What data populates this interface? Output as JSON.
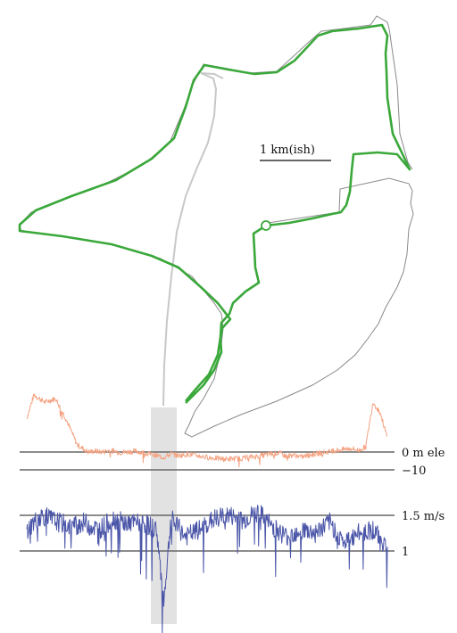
{
  "chart_data": [
    {
      "type": "line",
      "panel": "track map",
      "title": "",
      "scale_label": "1 km(ish)",
      "series": [
        {
          "description": "recorded track (green)",
          "color": "#3aa83a",
          "start_marker": "open circle"
        },
        {
          "description": "reference path (gray)",
          "color": "#8a8a8a"
        },
        {
          "description": "highlighted section path (light gray)",
          "color": "#c8c8c8"
        }
      ]
    },
    {
      "type": "line",
      "panel": "elevation",
      "unit": "m",
      "color": "#f4a382",
      "reference_lines": [
        {
          "value": 0,
          "label": "0 m ele"
        },
        {
          "value": -10,
          "label": "−10"
        }
      ],
      "x": [
        0,
        0.02,
        0.05,
        0.08,
        0.11,
        0.14,
        0.17,
        0.19,
        0.21,
        0.23,
        0.26,
        0.3,
        0.34,
        0.36,
        0.38,
        0.4,
        0.42,
        0.45,
        0.5,
        0.55,
        0.6,
        0.65,
        0.68,
        0.7,
        0.72,
        0.74,
        0.76,
        0.8,
        0.85,
        0.88,
        0.9,
        0.92,
        0.94,
        0.96,
        0.98,
        1.0
      ],
      "values": [
        19,
        32,
        28,
        30,
        18,
        4,
        0,
        0.5,
        0,
        1,
        -0.3,
        0.5,
        -1,
        -2,
        -3,
        -1,
        -2,
        -1.2,
        -3,
        -4,
        -3.5,
        -2,
        -1,
        -0.5,
        -2.5,
        -1.5,
        -2.8,
        -1,
        0.5,
        1.5,
        2,
        0.8,
        3,
        28,
        22,
        8
      ]
    },
    {
      "type": "line",
      "panel": "speed",
      "unit": "m/s",
      "color": "#4a55a8",
      "reference_lines": [
        {
          "value": 1.5,
          "label": "1.5  m/s"
        },
        {
          "value": 1,
          "label": "1"
        }
      ],
      "x": [
        0,
        0.04,
        0.08,
        0.12,
        0.16,
        0.2,
        0.24,
        0.28,
        0.32,
        0.36,
        0.38,
        0.4,
        0.44,
        0.48,
        0.52,
        0.56,
        0.6,
        0.64,
        0.68,
        0.72,
        0.76,
        0.8,
        0.84,
        0.88,
        0.92,
        0.96,
        1.0
      ],
      "values": [
        1.3,
        1.5,
        1.42,
        1.35,
        1.4,
        1.3,
        1.45,
        1.38,
        1.4,
        1.3,
        0.3,
        1.45,
        1.2,
        1.3,
        1.45,
        1.5,
        1.42,
        1.55,
        1.35,
        1.2,
        1.3,
        1.25,
        1.4,
        1.1,
        1.25,
        1.3,
        1.05
      ]
    }
  ],
  "highlight": {
    "x_range": [
      0.36,
      0.395
    ]
  }
}
